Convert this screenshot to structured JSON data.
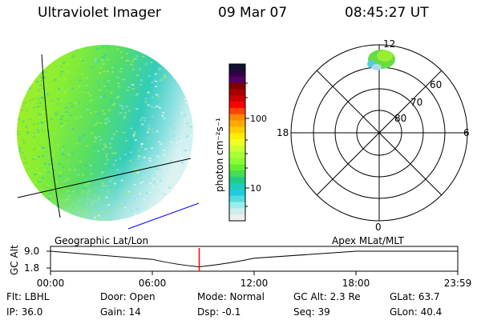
{
  "header": {
    "instrument": "Ultraviolet Imager",
    "date": "09 Mar 07",
    "time": "08:45:27 UT"
  },
  "colorbar": {
    "label": "photon cm⁻²s⁻¹",
    "ticks": [
      "100",
      "10"
    ],
    "colors": [
      "#111133",
      "#330044",
      "#550066",
      "#800000",
      "#aa0000",
      "#cc0000",
      "#ff0000",
      "#ff4400",
      "#ff8800",
      "#ffaa00",
      "#ffcc00",
      "#ffee00",
      "#eeff22",
      "#ccff33",
      "#aaff33",
      "#88ff33",
      "#66ee33",
      "#44dd55",
      "#22cc88",
      "#22ccbb",
      "#22ccdd",
      "#55dddd",
      "#99eeee",
      "#cceeee",
      "#eeeeee"
    ]
  },
  "polar_plot": {
    "labels": {
      "top": "12",
      "bottom": "0",
      "left": "18",
      "right": "6"
    },
    "lat_labels": [
      "60",
      "70",
      "80"
    ]
  },
  "timeline": {
    "left_label": "Geographic Lat/Lon",
    "right_label": "Apex  MLat/MLT",
    "axis_label": "GC Alt",
    "y_ticks": [
      "9.0",
      "1.8"
    ],
    "x_ticks": [
      "00:00",
      "06:00",
      "12:00",
      "18:00",
      "23:59"
    ]
  },
  "info": {
    "filter": "Flt: LBHL",
    "ip": "IP: 36.0",
    "door": "Door: Open",
    "gain": "Gain: 14",
    "mode": "Mode: Normal",
    "dsp": "Dsp:    -0.1",
    "gc_alt": "GC Alt: 2.3 Re",
    "seq": "Seq: 39",
    "glat": "GLat:   63.7",
    "glon": "GLon:  40.4"
  },
  "chart_data": {
    "type": "line",
    "title": "",
    "xlabel": "",
    "ylabel": "GC Alt",
    "x": [
      "00:00",
      "06:00",
      "08:45",
      "12:00",
      "18:00",
      "23:59"
    ],
    "xlim": [
      "00:00",
      "23:59"
    ],
    "ylim": [
      1.8,
      9.0
    ],
    "series": [
      {
        "values": [
          9.0,
          5.5,
          2.3,
          6.0,
          9.0,
          9.0
        ]
      }
    ],
    "current_time": "08:45:27"
  }
}
